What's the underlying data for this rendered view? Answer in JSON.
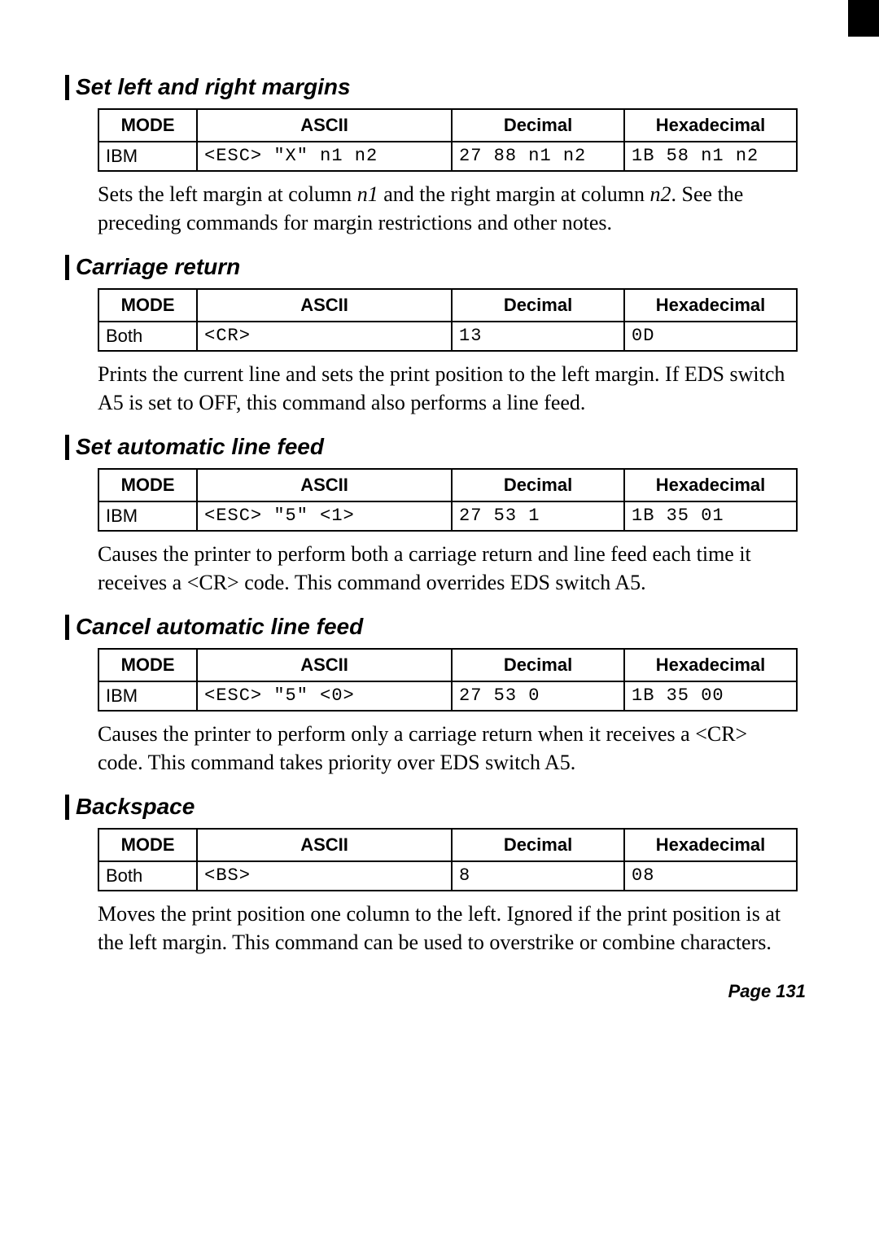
{
  "headers": {
    "mode": "MODE",
    "ascii": "ASCII",
    "decimal": "Decimal",
    "hex": "Hexadecimal"
  },
  "sections": [
    {
      "title": "Set left and right margins",
      "row": {
        "mode": "IBM",
        "ascii": "<ESC> \"X\" n1 n2",
        "decimal": "27 88 n1 n2",
        "hex": "1B 58 n1 n2"
      },
      "desc_html": "Sets the left margin at column <span class=\"italic\">n1</span> and the right margin at column <span class=\"italic\">n2</span>. See the preceding commands for margin restrictions and other notes."
    },
    {
      "title": "Carriage return",
      "row": {
        "mode": "Both",
        "ascii": "<CR>",
        "decimal": "13",
        "hex": "0D"
      },
      "desc_html": "Prints the current line and sets the print position to the left margin. If EDS switch A5 is set to OFF, this command also performs a line feed."
    },
    {
      "title": "Set automatic line feed",
      "row": {
        "mode": "IBM",
        "ascii": "<ESC> \"5\" <1>",
        "decimal": "27 53 1",
        "hex": "1B 35 01"
      },
      "desc_html": "Causes the printer to perform both a carriage return and line feed each time it receives a &lt;CR&gt; code. This command overrides EDS switch A5."
    },
    {
      "title": "Cancel automatic line feed",
      "row": {
        "mode": "IBM",
        "ascii": "<ESC> \"5\" <0>",
        "decimal": "27 53 0",
        "hex": "1B 35 00"
      },
      "desc_html": "Causes the printer to perform only a carriage return when it receives a &lt;CR&gt; code. This command takes priority over EDS switch A5."
    },
    {
      "title": "Backspace",
      "row": {
        "mode": "Both",
        "ascii": "<BS>",
        "decimal": "8",
        "hex": "08"
      },
      "desc_html": "Moves the print position one column to the left. Ignored if the print position is at the left margin. This command can be used to overstrike or combine characters."
    }
  ],
  "pagenum": "Page 131"
}
